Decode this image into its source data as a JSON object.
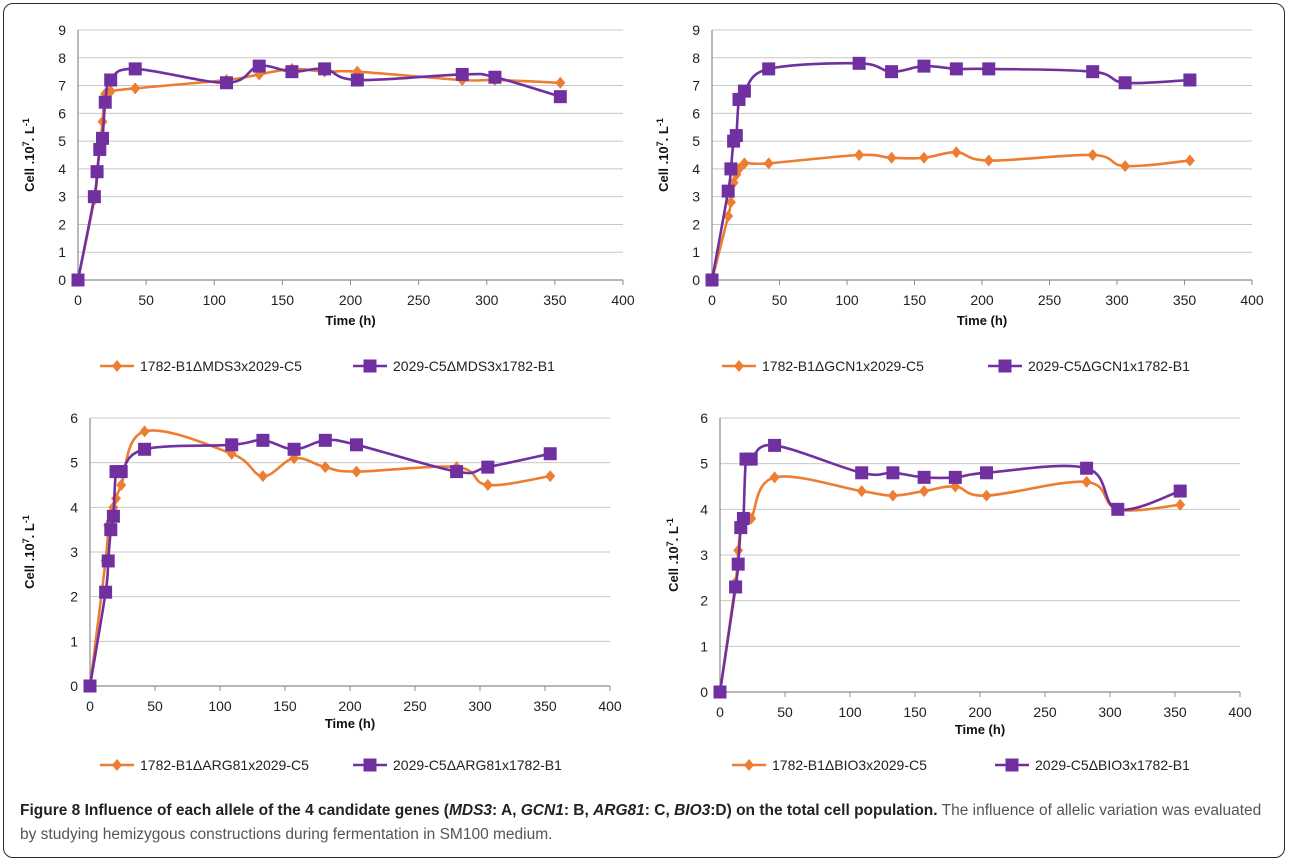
{
  "caption": {
    "label": "Figure 8",
    "title_parts": [
      "Influence of each allele of the 4 candidate genes (",
      "MDS3",
      ": A, ",
      "GCN1",
      ": B, ",
      "ARG81",
      ": C, ",
      "BIO3",
      ":D) on the total cell population."
    ],
    "body": " The influence of allelic variation was evaluated by studying hemizygous constructions during fermentation in SM100 medium."
  },
  "colors": {
    "orange": "#ED7D31",
    "purple": "#7030A0",
    "grid": "#c8c8c8",
    "axis": "#8c8c8c"
  },
  "chart_data": [
    {
      "type": "line",
      "panel": "A",
      "xlabel": "Time (h)",
      "ylabel_parts": [
        "Cell .10",
        "7",
        ". L",
        "-1"
      ],
      "xlim": [
        0,
        400
      ],
      "ylim": [
        0,
        9
      ],
      "xticks": [
        0,
        50,
        100,
        150,
        200,
        250,
        300,
        350,
        400
      ],
      "yticks": [
        0,
        1,
        2,
        3,
        4,
        5,
        6,
        7,
        8,
        9
      ],
      "grid": true,
      "legend_position": "bottom",
      "series": [
        {
          "name": "1782-B1ΔMDS3x2029-C5",
          "color": "#ED7D31",
          "marker": "diamond",
          "x": [
            0,
            12,
            14,
            16,
            18,
            20,
            24,
            42,
            109,
            133,
            157,
            181,
            205,
            282,
            306,
            354
          ],
          "y": [
            0,
            2.9,
            3.8,
            4.8,
            5.7,
            6.7,
            6.8,
            6.9,
            7.2,
            7.4,
            7.6,
            7.5,
            7.5,
            7.2,
            7.2,
            7.1
          ]
        },
        {
          "name": "2029-C5ΔMDS3x1782-B1",
          "color": "#7030A0",
          "marker": "square",
          "x": [
            0,
            12,
            14,
            16,
            18,
            20,
            24,
            42,
            109,
            133,
            157,
            181,
            205,
            282,
            306,
            354
          ],
          "y": [
            0,
            3.0,
            3.9,
            4.7,
            5.1,
            6.4,
            7.2,
            7.6,
            7.1,
            7.7,
            7.5,
            7.6,
            7.2,
            7.4,
            7.3,
            6.6
          ]
        }
      ]
    },
    {
      "type": "line",
      "panel": "B",
      "xlabel": "Time (h)",
      "ylabel_parts": [
        "Cell .10",
        "7",
        ". L",
        "-1"
      ],
      "xlim": [
        0,
        400
      ],
      "ylim": [
        0,
        9
      ],
      "xticks": [
        0,
        50,
        100,
        150,
        200,
        250,
        300,
        350,
        400
      ],
      "yticks": [
        0,
        1,
        2,
        3,
        4,
        5,
        6,
        7,
        8,
        9
      ],
      "grid": true,
      "legend_position": "bottom",
      "series": [
        {
          "name": "1782-B1ΔGCN1x2029-C5",
          "color": "#ED7D31",
          "marker": "diamond",
          "x": [
            0,
            12,
            14,
            16,
            18,
            20,
            24,
            42,
            109,
            133,
            157,
            181,
            205,
            282,
            306,
            354
          ],
          "y": [
            0,
            2.3,
            2.8,
            3.5,
            3.8,
            4.0,
            4.2,
            4.2,
            4.5,
            4.4,
            4.4,
            4.6,
            4.3,
            4.5,
            4.1,
            4.3
          ]
        },
        {
          "name": "2029-C5ΔGCN1x1782-B1",
          "color": "#7030A0",
          "marker": "square",
          "x": [
            0,
            12,
            14,
            16,
            18,
            20,
            24,
            42,
            109,
            133,
            157,
            181,
            205,
            282,
            306,
            354
          ],
          "y": [
            0,
            3.2,
            4.0,
            5.0,
            5.2,
            6.5,
            6.8,
            7.6,
            7.8,
            7.5,
            7.7,
            7.6,
            7.6,
            7.5,
            7.1,
            7.2
          ]
        }
      ]
    },
    {
      "type": "line",
      "panel": "C",
      "xlabel": "Time (h)",
      "ylabel_parts": [
        "Cell .10",
        "7",
        ". L",
        "-1"
      ],
      "xlim": [
        0,
        400
      ],
      "ylim": [
        0,
        6
      ],
      "xticks": [
        0,
        50,
        100,
        150,
        200,
        250,
        300,
        350,
        400
      ],
      "yticks": [
        0,
        1,
        2,
        3,
        4,
        5,
        6
      ],
      "grid": true,
      "legend_position": "bottom",
      "series": [
        {
          "name": "1782-B1ΔARG81x2029-C5",
          "color": "#ED7D31",
          "marker": "diamond",
          "x": [
            0,
            12,
            14,
            16,
            18,
            20,
            24,
            42,
            109,
            133,
            157,
            181,
            205,
            282,
            306,
            354
          ],
          "y": [
            0,
            2.8,
            3.6,
            3.7,
            4.0,
            4.2,
            4.5,
            5.7,
            5.2,
            4.7,
            5.1,
            4.9,
            4.8,
            4.9,
            4.5,
            4.7
          ]
        },
        {
          "name": "2029-C5ΔARG81x1782-B1",
          "color": "#7030A0",
          "marker": "square",
          "x": [
            0,
            12,
            14,
            16,
            18,
            20,
            24,
            42,
            109,
            133,
            157,
            181,
            205,
            282,
            306,
            354
          ],
          "y": [
            0,
            2.1,
            2.8,
            3.5,
            3.8,
            4.8,
            4.8,
            5.3,
            5.4,
            5.5,
            5.3,
            5.5,
            5.4,
            4.8,
            4.9,
            5.2
          ]
        }
      ]
    },
    {
      "type": "line",
      "panel": "D",
      "xlabel": "Time (h)",
      "ylabel_parts": [
        "Cell .10",
        "7",
        ". L",
        "-1"
      ],
      "xlim": [
        0,
        400
      ],
      "ylim": [
        0,
        6
      ],
      "xticks": [
        0,
        50,
        100,
        150,
        200,
        250,
        300,
        350,
        400
      ],
      "yticks": [
        0,
        1,
        2,
        3,
        4,
        5,
        6
      ],
      "grid": true,
      "legend_position": "bottom",
      "series": [
        {
          "name": "1782-B1ΔBIO3x2029-C5",
          "color": "#ED7D31",
          "marker": "diamond",
          "x": [
            0,
            12,
            14,
            16,
            18,
            20,
            24,
            42,
            109,
            133,
            157,
            181,
            205,
            282,
            306,
            354
          ],
          "y": [
            0,
            2.4,
            3.1,
            3.6,
            3.7,
            3.8,
            3.8,
            4.7,
            4.4,
            4.3,
            4.4,
            4.5,
            4.3,
            4.6,
            4.0,
            4.1
          ]
        },
        {
          "name": "2029-C5ΔBIO3x1782-B1",
          "color": "#7030A0",
          "marker": "square",
          "x": [
            0,
            12,
            14,
            16,
            18,
            20,
            24,
            42,
            109,
            133,
            157,
            181,
            205,
            282,
            306,
            354
          ],
          "y": [
            0,
            2.3,
            2.8,
            3.6,
            3.8,
            5.1,
            5.1,
            5.4,
            4.8,
            4.8,
            4.7,
            4.7,
            4.8,
            4.9,
            4.0,
            4.4
          ]
        }
      ]
    }
  ]
}
